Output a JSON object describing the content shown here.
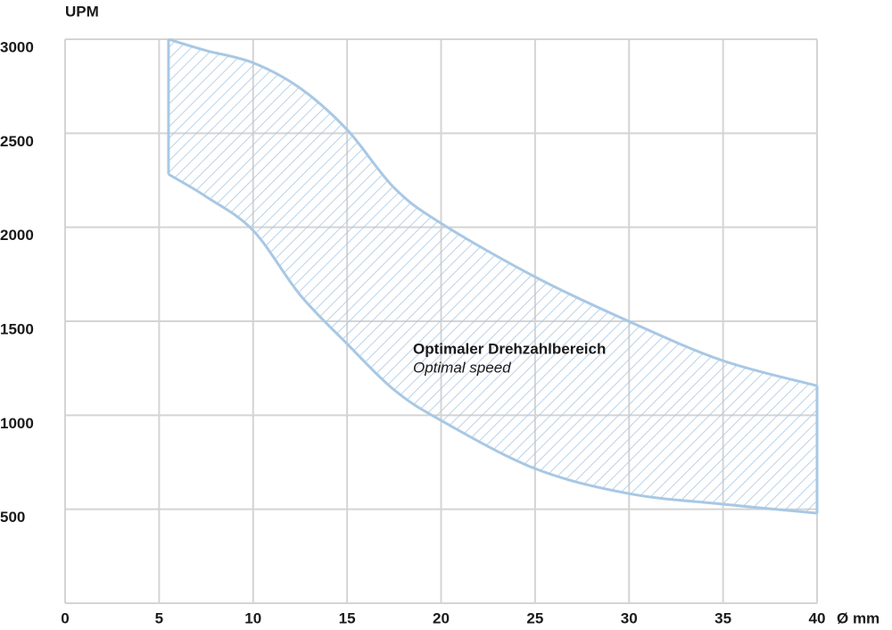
{
  "chart_data": {
    "type": "range_area",
    "y_label": "UPM",
    "x_label": "Ø mm",
    "annotation": "Optimaler Drehzahlbereich",
    "annotation_sub": "Optimal speed",
    "x": [
      5.5,
      7.5,
      10,
      12.5,
      15,
      17.5,
      20,
      25,
      30,
      35,
      40
    ],
    "series": [
      {
        "color": "#a8c8e4",
        "values": [
          3000,
          2940,
          2875,
          2740,
          2519,
          2210,
          2021,
          1736,
          1499,
          1290,
          1157
        ]
      },
      {
        "color": "#a8c8e4",
        "values": [
          2282,
          2163,
          1983,
          1640,
          1380,
          1135,
          972,
          716,
          583,
          527,
          479
        ]
      }
    ],
    "xlim": [
      0,
      40
    ],
    "xticks": [
      0,
      5,
      10,
      15,
      20,
      25,
      30,
      35,
      40
    ],
    "ylim": [
      0,
      3000
    ],
    "yticks": [
      500,
      1000,
      1500,
      2000,
      2500,
      3000
    ],
    "grid": true
  }
}
